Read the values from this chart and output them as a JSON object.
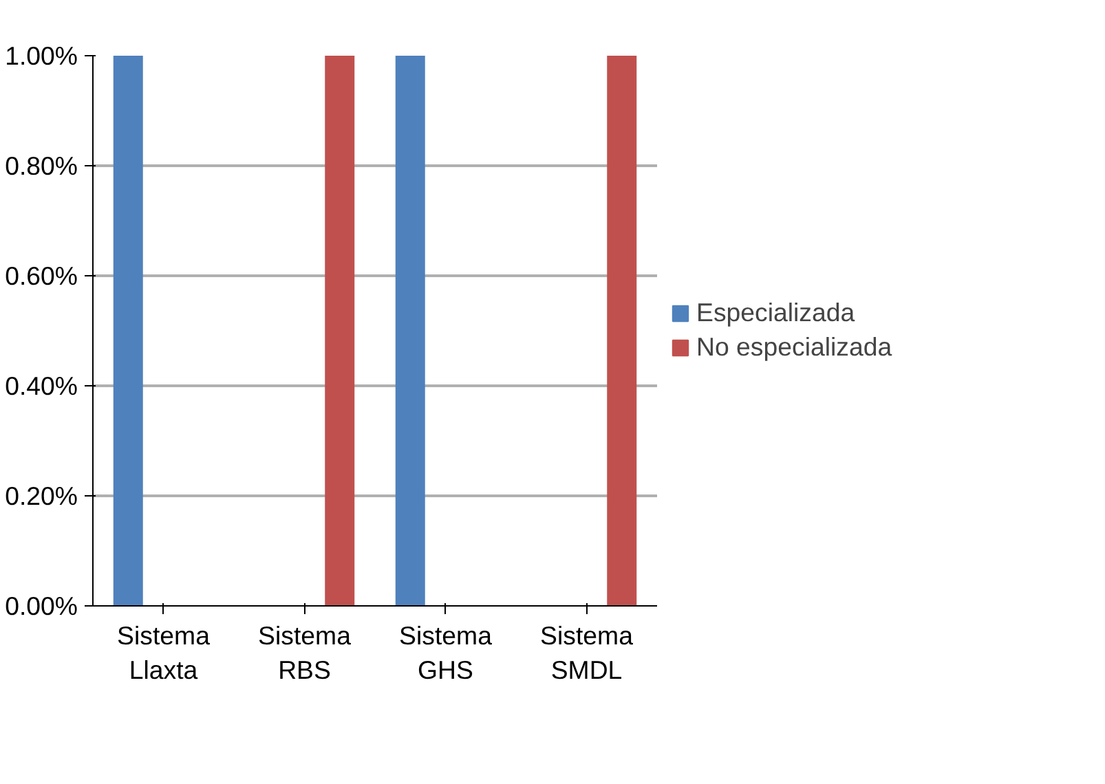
{
  "chart_data": {
    "type": "bar",
    "categories": [
      "Sistema Llaxta",
      "Sistema RBS",
      "Sistema GHS",
      "Sistema SMDL"
    ],
    "series": [
      {
        "name": "Especializada",
        "color": "#4f81bd",
        "values": [
          1.0,
          null,
          1.0,
          null
        ]
      },
      {
        "name": "No especializada",
        "color": "#c0504d",
        "values": [
          null,
          1.0,
          null,
          1.0
        ]
      }
    ],
    "ylim": [
      0,
      1
    ],
    "yticks": [
      {
        "value": 0,
        "label": "0.00%"
      },
      {
        "value": 0.2,
        "label": "0.20%"
      },
      {
        "value": 0.4,
        "label": "0.40%"
      },
      {
        "value": 0.6,
        "label": "0.60%"
      },
      {
        "value": 0.8,
        "label": "0.80%"
      },
      {
        "value": 1,
        "label": "1.00%"
      }
    ],
    "grid": "y",
    "legend": "right"
  }
}
